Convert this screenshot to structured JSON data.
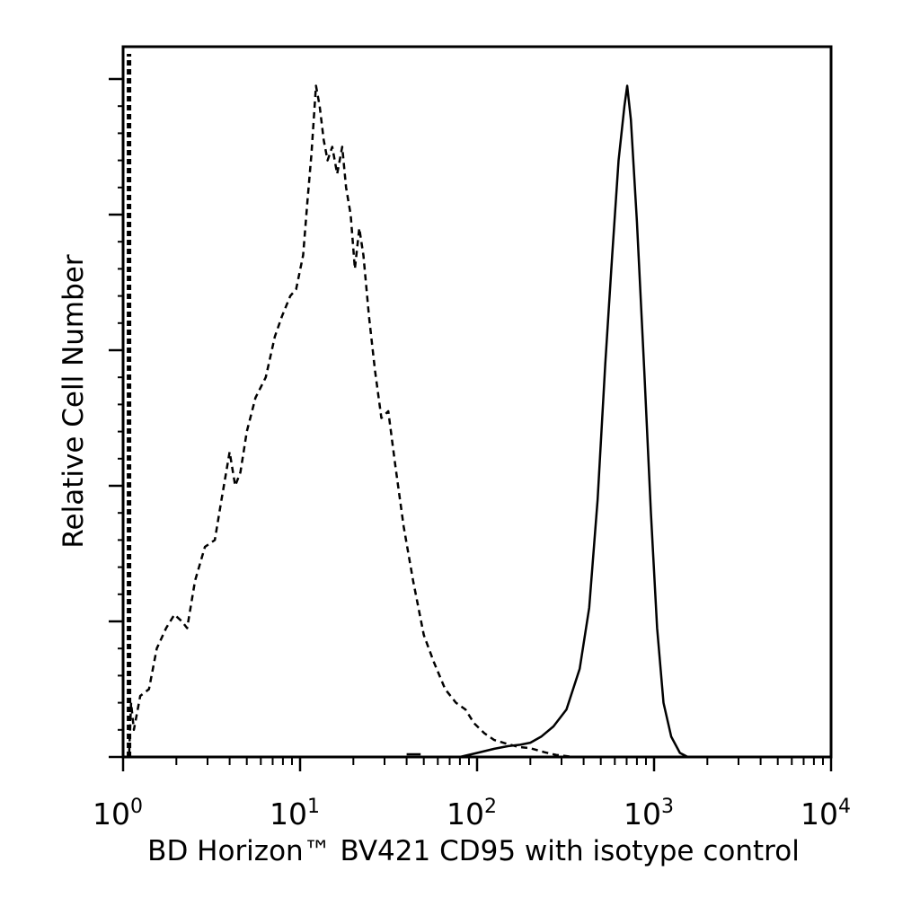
{
  "chart_data": {
    "type": "line",
    "title": "",
    "xlabel": "BD Horizon™ BV421 CD95 with isotype control",
    "ylabel": "Relative Cell Number",
    "x_scale": "log",
    "xlim": [
      1,
      10000
    ],
    "ylim": [
      0,
      100
    ],
    "x_ticks": [
      {
        "base": "10",
        "exp": "0",
        "value": 1
      },
      {
        "base": "10",
        "exp": "1",
        "value": 10
      },
      {
        "base": "10",
        "exp": "2",
        "value": 100
      },
      {
        "base": "10",
        "exp": "3",
        "value": 1000
      },
      {
        "base": "10",
        "exp": "4",
        "value": 10000
      }
    ],
    "y_tick_count": 5,
    "grid": false,
    "legend": "none",
    "series": [
      {
        "style": "dashed",
        "color": "#000000",
        "points": [
          [
            1.0,
            0
          ],
          [
            1.08,
            0
          ],
          [
            1.11,
            8
          ],
          [
            1.15,
            4
          ],
          [
            1.25,
            9
          ],
          [
            1.4,
            10
          ],
          [
            1.55,
            16
          ],
          [
            1.75,
            19
          ],
          [
            1.95,
            21
          ],
          [
            2.15,
            20
          ],
          [
            2.3,
            19
          ],
          [
            2.55,
            26
          ],
          [
            2.9,
            31
          ],
          [
            3.3,
            32
          ],
          [
            3.6,
            38
          ],
          [
            4.0,
            45
          ],
          [
            4.3,
            40
          ],
          [
            4.6,
            42
          ],
          [
            5.0,
            48
          ],
          [
            5.6,
            53
          ],
          [
            6.4,
            56
          ],
          [
            7.2,
            62
          ],
          [
            7.9,
            65
          ],
          [
            8.8,
            68
          ],
          [
            9.5,
            69
          ],
          [
            10.4,
            74
          ],
          [
            11.0,
            82
          ],
          [
            11.6,
            89
          ],
          [
            12.3,
            99
          ],
          [
            12.9,
            96
          ],
          [
            13.6,
            91
          ],
          [
            14.3,
            88
          ],
          [
            15.2,
            90
          ],
          [
            16.2,
            86
          ],
          [
            17.3,
            90
          ],
          [
            18.2,
            84
          ],
          [
            19.3,
            80
          ],
          [
            20.4,
            72
          ],
          [
            21.6,
            78
          ],
          [
            22.8,
            74
          ],
          [
            24.5,
            65
          ],
          [
            26.5,
            57
          ],
          [
            28.8,
            50
          ],
          [
            31.5,
            51
          ],
          [
            34.5,
            43
          ],
          [
            38.5,
            34
          ],
          [
            43.5,
            26
          ],
          [
            50.0,
            18
          ],
          [
            57.0,
            14
          ],
          [
            66.0,
            10
          ],
          [
            76.0,
            8
          ],
          [
            86.0,
            7
          ],
          [
            96.0,
            5
          ],
          [
            110.0,
            3.5
          ],
          [
            125.0,
            2.5
          ],
          [
            145.0,
            2
          ],
          [
            170.0,
            1.5
          ],
          [
            200.0,
            1.3
          ],
          [
            240.0,
            0.7
          ],
          [
            280.0,
            0.3
          ],
          [
            350.0,
            0
          ],
          [
            10000.0,
            0
          ]
        ]
      },
      {
        "style": "solid",
        "color": "#000000",
        "points": [
          [
            1.0,
            0
          ],
          [
            80.0,
            0
          ],
          [
            100.0,
            0.6
          ],
          [
            125.0,
            1.2
          ],
          [
            150.0,
            1.6
          ],
          [
            175.0,
            1.8
          ],
          [
            200.0,
            2.1
          ],
          [
            230.0,
            3
          ],
          [
            270.0,
            4.5
          ],
          [
            320.0,
            7
          ],
          [
            380.0,
            13
          ],
          [
            430.0,
            22
          ],
          [
            480.0,
            38
          ],
          [
            530.0,
            58
          ],
          [
            580.0,
            74
          ],
          [
            630.0,
            88
          ],
          [
            680.0,
            96
          ],
          [
            705.0,
            99
          ],
          [
            740.0,
            94
          ],
          [
            800.0,
            79
          ],
          [
            880.0,
            57
          ],
          [
            960.0,
            36
          ],
          [
            1040.0,
            19
          ],
          [
            1130.0,
            8
          ],
          [
            1250.0,
            3
          ],
          [
            1400.0,
            0.6
          ],
          [
            1550.0,
            0
          ],
          [
            10000.0,
            0
          ]
        ]
      },
      {
        "style": "solid",
        "color": "#000000",
        "points": [
          [
            40.0,
            0.4
          ],
          [
            48.0,
            0.4
          ]
        ]
      }
    ]
  }
}
